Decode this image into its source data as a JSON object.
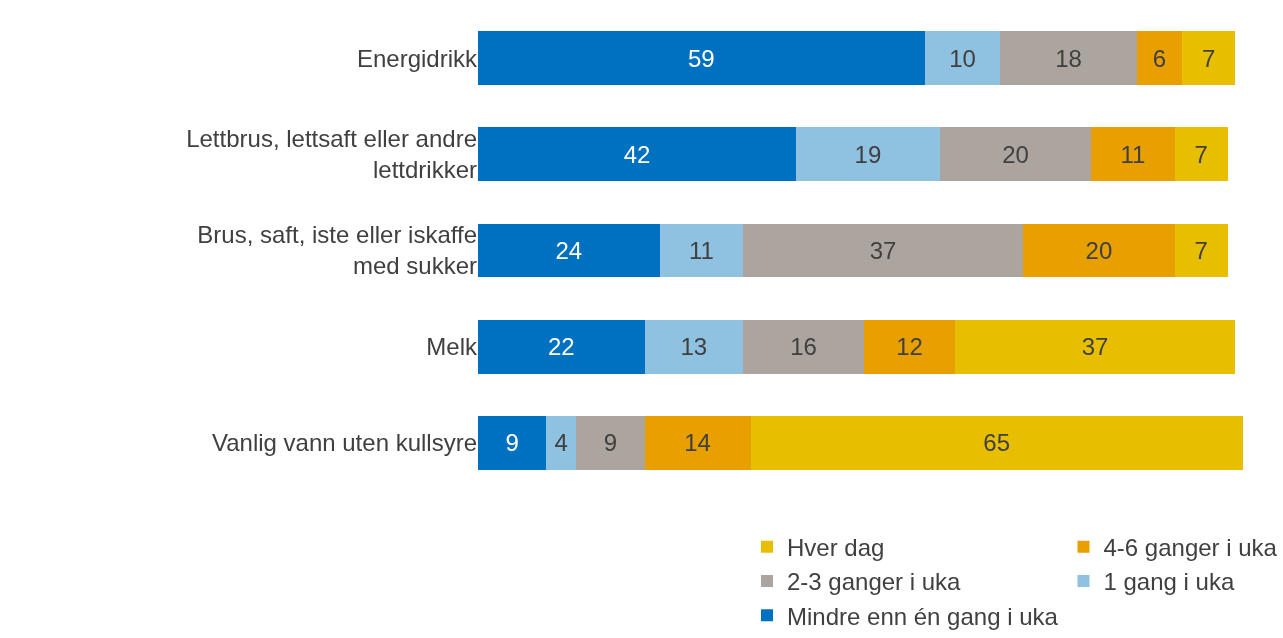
{
  "chart_data": {
    "type": "bar",
    "orientation": "horizontal",
    "stacked": true,
    "data_labels": true,
    "legend": "bottom",
    "categories": [
      "Energidrikk",
      "Lettbrus, lettsaft eller andre lettdrikker",
      "Brus, saft, iste eller iskaffe med sukker",
      "Melk",
      "Vanlig vann uten kullsyre"
    ],
    "series": [
      {
        "name": "Mindre enn én gang i uka",
        "color": "#0070c0",
        "values": [
          59,
          42,
          24,
          22,
          9
        ]
      },
      {
        "name": "1 gang i uka",
        "color": "#8fc1e0",
        "values": [
          10,
          19,
          11,
          13,
          4
        ]
      },
      {
        "name": "2-3 ganger i uka",
        "color": "#aca59f",
        "values": [
          18,
          20,
          37,
          16,
          9
        ]
      },
      {
        "name": "4-6 ganger i uka",
        "color": "#e8a000",
        "values": [
          6,
          11,
          20,
          12,
          14
        ]
      },
      {
        "name": "Hver dag",
        "color": "#e8bf00",
        "values": [
          7,
          7,
          7,
          37,
          65
        ]
      }
    ]
  }
}
